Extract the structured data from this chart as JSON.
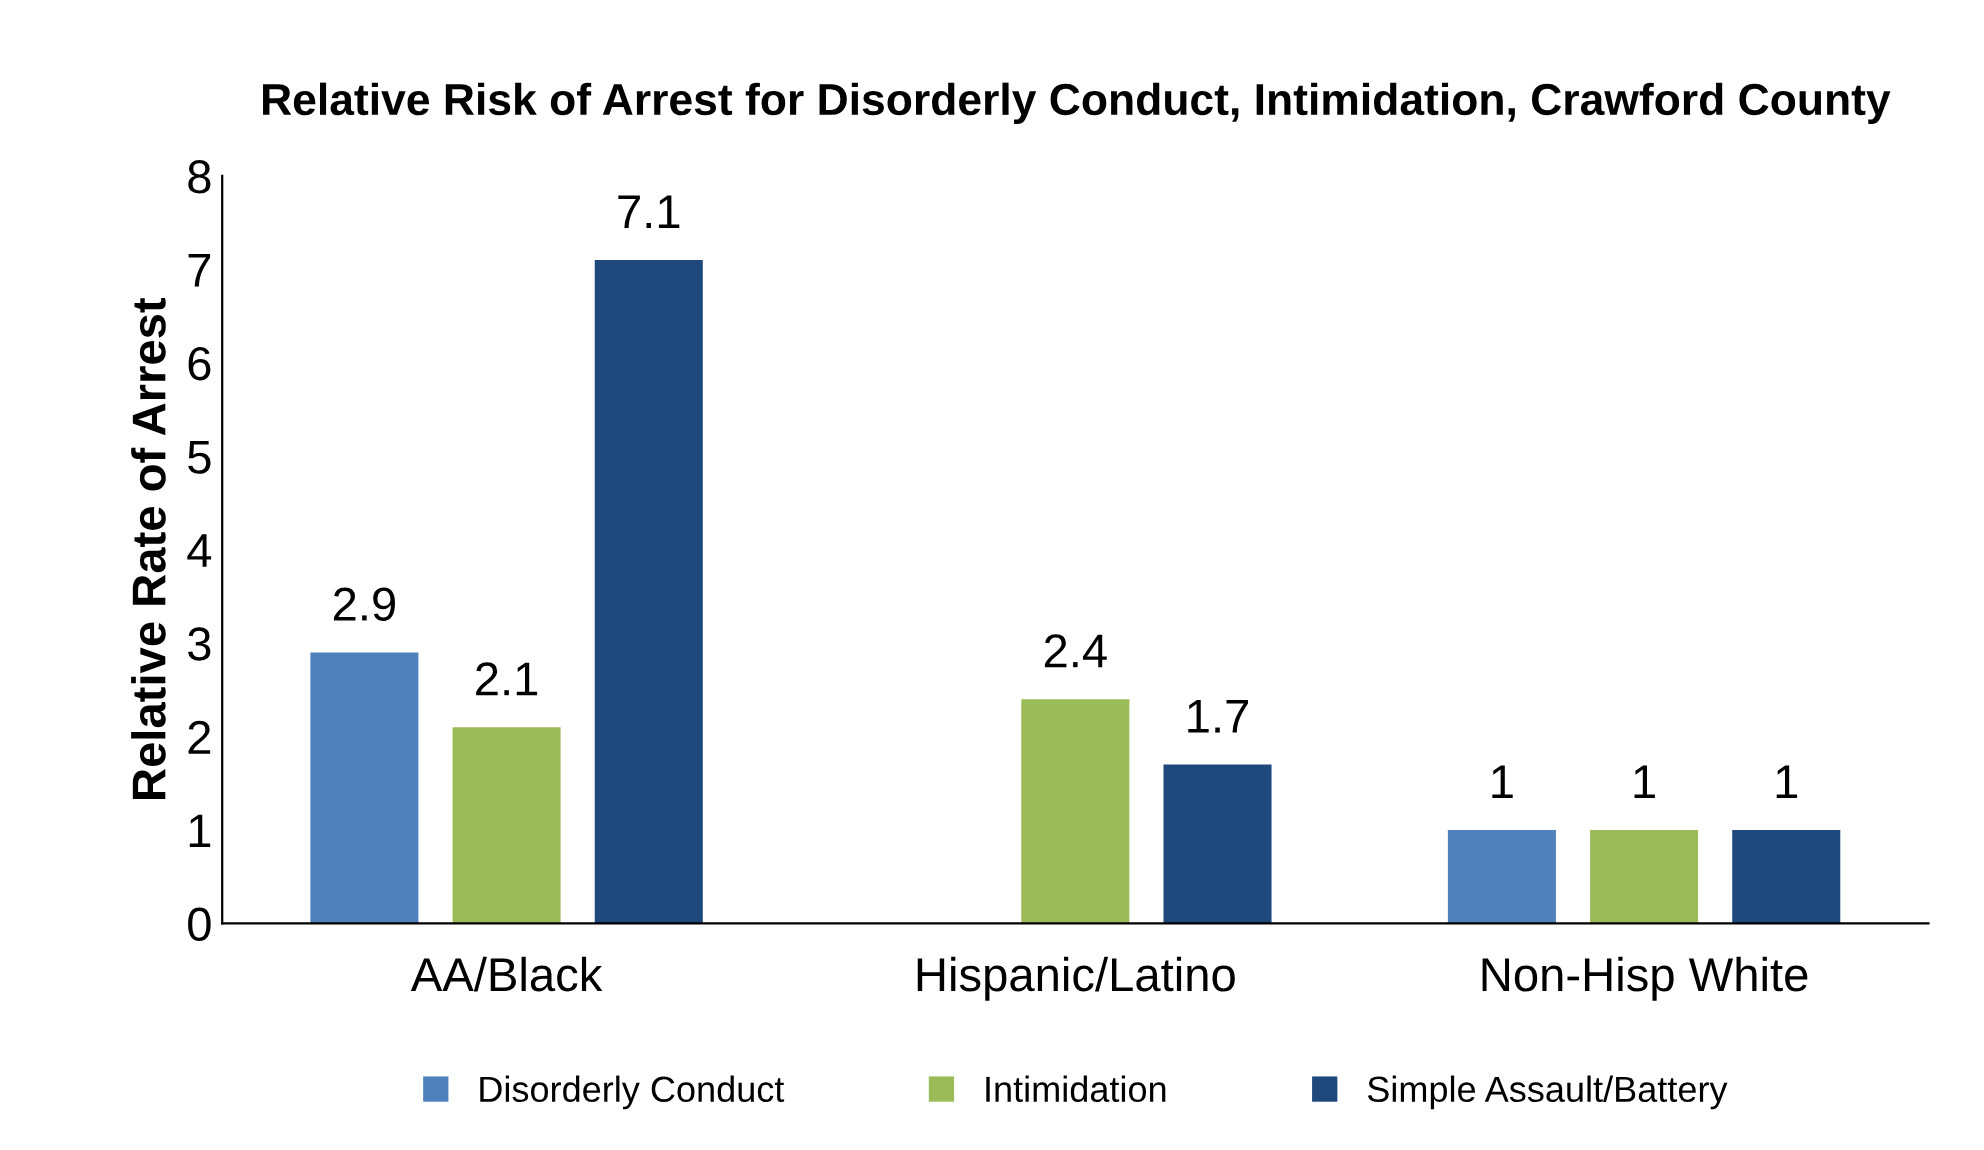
{
  "chart_data": {
    "type": "bar",
    "title": "Relative Risk of Arrest for Disorderly Conduct, Intimidation, Crawford County",
    "ylabel": "Relative Rate of Arrest",
    "categories": [
      "AA/Black",
      "Hispanic/Latino",
      "Non-Hisp White"
    ],
    "series": [
      {
        "name": "Disorderly Conduct",
        "color": "#4f81bd",
        "values": [
          2.9,
          null,
          1
        ]
      },
      {
        "name": "Intimidation",
        "color": "#9bbb59",
        "values": [
          2.1,
          2.4,
          1
        ]
      },
      {
        "name": "Simple Assault/Battery",
        "color": "#1f497d",
        "values": [
          7.1,
          1.7,
          1
        ]
      }
    ],
    "ylim": [
      0,
      8
    ],
    "yticks": [
      0,
      1,
      2,
      3,
      4,
      5,
      6,
      7,
      8
    ],
    "data_labels": true,
    "legend": "bottom",
    "grid": false
  }
}
